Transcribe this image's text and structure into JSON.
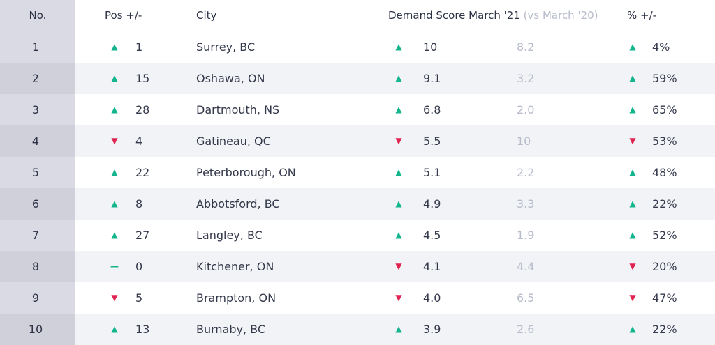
{
  "header": {
    "no": "No.",
    "pos": "Pos +/-",
    "city": "City",
    "demand": "Demand Score March '21",
    "demand_vs": "(vs March '20)",
    "pct": "% +/-"
  },
  "colors": {
    "up": "#14b48c",
    "down": "#e02452",
    "rank_column": "#d9dae3"
  },
  "rows": [
    {
      "rank": "1",
      "pos_dir": "up",
      "pos": "1",
      "city": "Surrey, BC",
      "score_dir": "up",
      "score": "10",
      "prev": "8.2",
      "pct_dir": "up",
      "pct": "4%"
    },
    {
      "rank": "2",
      "pos_dir": "up",
      "pos": "15",
      "city": "Oshawa, ON",
      "score_dir": "up",
      "score": "9.1",
      "prev": "3.2",
      "pct_dir": "up",
      "pct": "59%"
    },
    {
      "rank": "3",
      "pos_dir": "up",
      "pos": "28",
      "city": "Dartmouth, NS",
      "score_dir": "up",
      "score": "6.8",
      "prev": "2.0",
      "pct_dir": "up",
      "pct": "65%"
    },
    {
      "rank": "4",
      "pos_dir": "down",
      "pos": "4",
      "city": "Gatineau, QC",
      "score_dir": "down",
      "score": "5.5",
      "prev": "10",
      "pct_dir": "down",
      "pct": "53%"
    },
    {
      "rank": "5",
      "pos_dir": "up",
      "pos": "22",
      "city": "Peterborough, ON",
      "score_dir": "up",
      "score": "5.1",
      "prev": "2.2",
      "pct_dir": "up",
      "pct": "48%"
    },
    {
      "rank": "6",
      "pos_dir": "up",
      "pos": "8",
      "city": "Abbotsford, BC",
      "score_dir": "up",
      "score": "4.9",
      "prev": "3.3",
      "pct_dir": "up",
      "pct": "22%"
    },
    {
      "rank": "7",
      "pos_dir": "up",
      "pos": "27",
      "city": "Langley, BC",
      "score_dir": "up",
      "score": "4.5",
      "prev": "1.9",
      "pct_dir": "up",
      "pct": "52%"
    },
    {
      "rank": "8",
      "pos_dir": "flat",
      "pos": "0",
      "city": "Kitchener, ON",
      "score_dir": "down",
      "score": "4.1",
      "prev": "4.4",
      "pct_dir": "down",
      "pct": "20%"
    },
    {
      "rank": "9",
      "pos_dir": "down",
      "pos": "5",
      "city": "Brampton, ON",
      "score_dir": "down",
      "score": "4.0",
      "prev": "6.5",
      "pct_dir": "down",
      "pct": "47%"
    },
    {
      "rank": "10",
      "pos_dir": "up",
      "pos": "13",
      "city": "Burnaby, BC",
      "score_dir": "up",
      "score": "3.9",
      "prev": "2.6",
      "pct_dir": "up",
      "pct": "22%"
    }
  ]
}
